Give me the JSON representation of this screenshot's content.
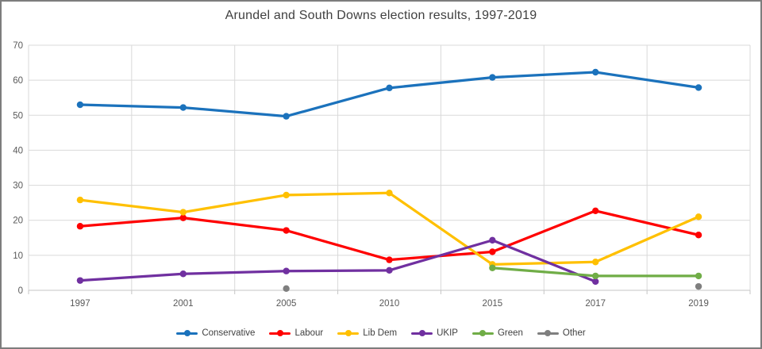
{
  "window": {
    "background": "#ffffff",
    "border_color": "#7d7d7d"
  },
  "chart_data": {
    "type": "line",
    "title": "Arundel and South Downs election results, 1997-2019",
    "categories": [
      "1997",
      "2001",
      "2005",
      "2010",
      "2015",
      "2017",
      "2019"
    ],
    "series": [
      {
        "name": "Conservative",
        "color": "#1b72bc",
        "values": [
          53.0,
          52.2,
          49.7,
          57.8,
          60.8,
          62.3,
          57.9
        ]
      },
      {
        "name": "Labour",
        "color": "#ff0000",
        "values": [
          18.3,
          20.7,
          17.1,
          8.7,
          11.0,
          22.7,
          15.8
        ]
      },
      {
        "name": "Lib Dem",
        "color": "#ffc000",
        "values": [
          25.8,
          22.3,
          27.2,
          27.8,
          7.4,
          8.1,
          21.0
        ]
      },
      {
        "name": "UKIP",
        "color": "#7030a0",
        "values": [
          2.8,
          4.7,
          5.5,
          5.7,
          14.3,
          2.5,
          null
        ]
      },
      {
        "name": "Green",
        "color": "#70ad47",
        "values": [
          null,
          null,
          null,
          null,
          6.4,
          4.1,
          4.1
        ]
      },
      {
        "name": "Other",
        "color": "#7f7f7f",
        "values": [
          null,
          null,
          0.5,
          null,
          null,
          null,
          1.1
        ]
      }
    ],
    "xlabel": "",
    "ylabel": "",
    "ylim": [
      0,
      70
    ],
    "ytick_step": 10,
    "yticks": [
      "0",
      "10",
      "20",
      "30",
      "40",
      "50",
      "60",
      "70"
    ],
    "grid": true,
    "legend_position": "bottom",
    "styles": {
      "grid_color": "#d9d9d9",
      "axis_color": "#c6c6c6",
      "tick_label_color": "#595959",
      "title_color": "#404040",
      "line_width": 3.25,
      "marker_radius": 4.2
    }
  }
}
